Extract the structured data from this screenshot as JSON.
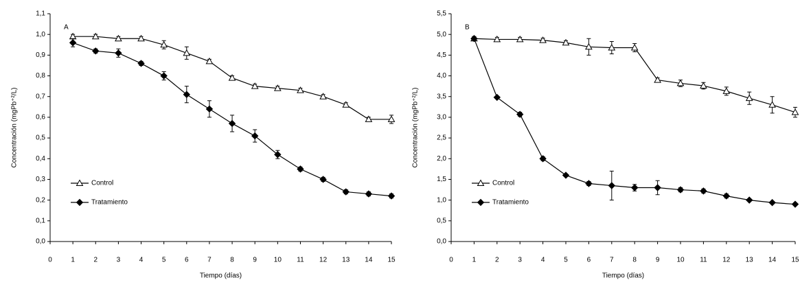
{
  "chart_data": [
    {
      "type": "line",
      "title": "A",
      "x_label": "Tiempo (días)",
      "y_label": "Concentración (mgPb⁺²/L)",
      "x": [
        1,
        2,
        3,
        4,
        5,
        6,
        7,
        8,
        9,
        10,
        11,
        12,
        13,
        14,
        15
      ],
      "xlim": [
        0,
        15
      ],
      "xticks": [
        0,
        1,
        2,
        3,
        4,
        5,
        6,
        7,
        8,
        9,
        10,
        11,
        12,
        13,
        14,
        15
      ],
      "ylim": [
        0,
        1.1
      ],
      "yticks": [
        {
          "value": 0,
          "label": "0,0"
        },
        {
          "value": 0.1,
          "label": "0,1"
        },
        {
          "value": 0.2,
          "label": "0,2"
        },
        {
          "value": 0.3,
          "label": "0,3"
        },
        {
          "value": 0.4,
          "label": "0,4"
        },
        {
          "value": 0.5,
          "label": "0,5"
        },
        {
          "value": 0.6,
          "label": "0,6"
        },
        {
          "value": 0.7,
          "label": "0,7"
        },
        {
          "value": 0.8,
          "label": "0,8"
        },
        {
          "value": 0.9,
          "label": "0,9"
        },
        {
          "value": 1,
          "label": "1,0"
        },
        {
          "value": 1.1,
          "label": "1,1"
        }
      ],
      "legend": "lower left",
      "series": [
        {
          "name": "Control",
          "color": "#000000",
          "marker": "triangle-open",
          "values": [
            0.99,
            0.99,
            0.98,
            0.98,
            0.95,
            0.91,
            0.87,
            0.79,
            0.75,
            0.74,
            0.73,
            0.7,
            0.66,
            0.59,
            0.59
          ],
          "errors": [
            0.01,
            0.01,
            0.01,
            0.01,
            0.02,
            0.03,
            0.01,
            0.01,
            0.01,
            0.01,
            0.01,
            0.01,
            0.01,
            0.01,
            0.02
          ]
        },
        {
          "name": "Tratamiento",
          "color": "#000000",
          "marker": "diamond",
          "values": [
            0.96,
            0.92,
            0.91,
            0.86,
            0.8,
            0.71,
            0.64,
            0.57,
            0.51,
            0.42,
            0.35,
            0.3,
            0.24,
            0.23,
            0.22
          ],
          "errors": [
            0.02,
            0.01,
            0.02,
            0.01,
            0.02,
            0.04,
            0.04,
            0.04,
            0.03,
            0.02,
            0.01,
            0.01,
            0.01,
            0.01,
            0.01
          ]
        }
      ]
    },
    {
      "type": "line",
      "title": "B",
      "x_label": "Tiempo (días)",
      "y_label": "Concentración (mgPb⁺²/L)",
      "x": [
        1,
        2,
        3,
        4,
        5,
        6,
        7,
        8,
        9,
        10,
        11,
        12,
        13,
        14,
        15
      ],
      "xlim": [
        0,
        15
      ],
      "xticks": [
        0,
        1,
        2,
        3,
        4,
        5,
        6,
        7,
        8,
        9,
        10,
        11,
        12,
        13,
        14,
        15
      ],
      "ylim": [
        0,
        5.5
      ],
      "yticks": [
        {
          "value": 0,
          "label": "0,0"
        },
        {
          "value": 0.5,
          "label": "0,5"
        },
        {
          "value": 1,
          "label": "1,0"
        },
        {
          "value": 1.5,
          "label": "1,5"
        },
        {
          "value": 2,
          "label": "2,0"
        },
        {
          "value": 2.5,
          "label": "2,5"
        },
        {
          "value": 3,
          "label": "3,0"
        },
        {
          "value": 3.5,
          "label": "3,5"
        },
        {
          "value": 4,
          "label": "4,0"
        },
        {
          "value": 4.5,
          "label": "4,5"
        },
        {
          "value": 5,
          "label": "5,0"
        },
        {
          "value": 5.5,
          "label": "5,5"
        }
      ],
      "legend": "lower left",
      "series": [
        {
          "name": "Control",
          "color": "#000000",
          "marker": "triangle-open",
          "values": [
            4.9,
            4.88,
            4.88,
            4.86,
            4.8,
            4.7,
            4.68,
            4.68,
            3.9,
            3.82,
            3.76,
            3.63,
            3.46,
            3.3,
            3.12
          ],
          "errors": [
            0.05,
            0.05,
            0.05,
            0.05,
            0.05,
            0.2,
            0.15,
            0.1,
            0.05,
            0.08,
            0.08,
            0.1,
            0.15,
            0.2,
            0.12
          ]
        },
        {
          "name": "Tratamiento",
          "color": "#000000",
          "marker": "diamond",
          "values": [
            4.9,
            3.48,
            3.07,
            2.0,
            1.6,
            1.4,
            1.35,
            1.3,
            1.3,
            1.25,
            1.22,
            1.1,
            1.0,
            0.94,
            0.9
          ],
          "errors": [
            0.05,
            0.03,
            0.05,
            0.05,
            0.03,
            0.05,
            0.35,
            0.08,
            0.17,
            0.05,
            0.05,
            0.05,
            0.03,
            0.03,
            0.03
          ]
        }
      ]
    }
  ]
}
